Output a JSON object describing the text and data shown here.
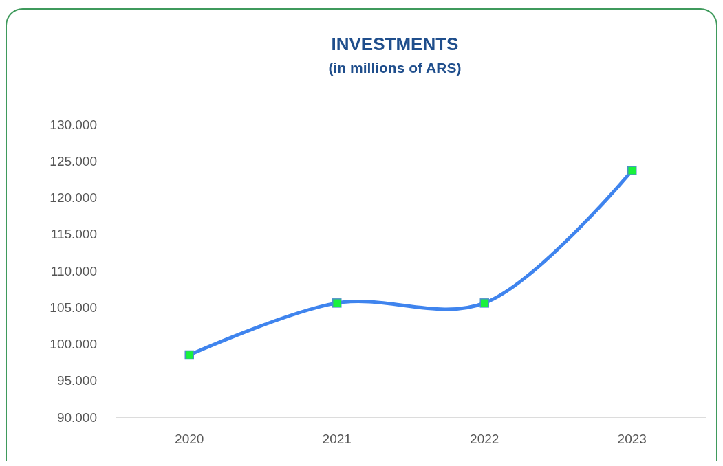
{
  "chart_data": {
    "type": "line",
    "title": "INVESTMENTS",
    "subtitle": "(in millions of ARS)",
    "categories": [
      "2020",
      "2021",
      "2022",
      "2023"
    ],
    "series": [
      {
        "color": "#3f84ee",
        "values": [
          98500,
          105600,
          105600,
          123700
        ]
      }
    ],
    "ylim": [
      90000,
      130000
    ],
    "yticks": [
      {
        "value": 90000,
        "label": "90.000"
      },
      {
        "value": 95000,
        "label": "95.000"
      },
      {
        "value": 100000,
        "label": "100.000"
      },
      {
        "value": 105000,
        "label": "105.000"
      },
      {
        "value": 110000,
        "label": "110.000"
      },
      {
        "value": 115000,
        "label": "115.000"
      },
      {
        "value": 120000,
        "label": "120.000"
      },
      {
        "value": 125000,
        "label": "125.000"
      },
      {
        "value": 130000,
        "label": "130.000"
      }
    ],
    "marker": "square",
    "line_style": "solid"
  }
}
